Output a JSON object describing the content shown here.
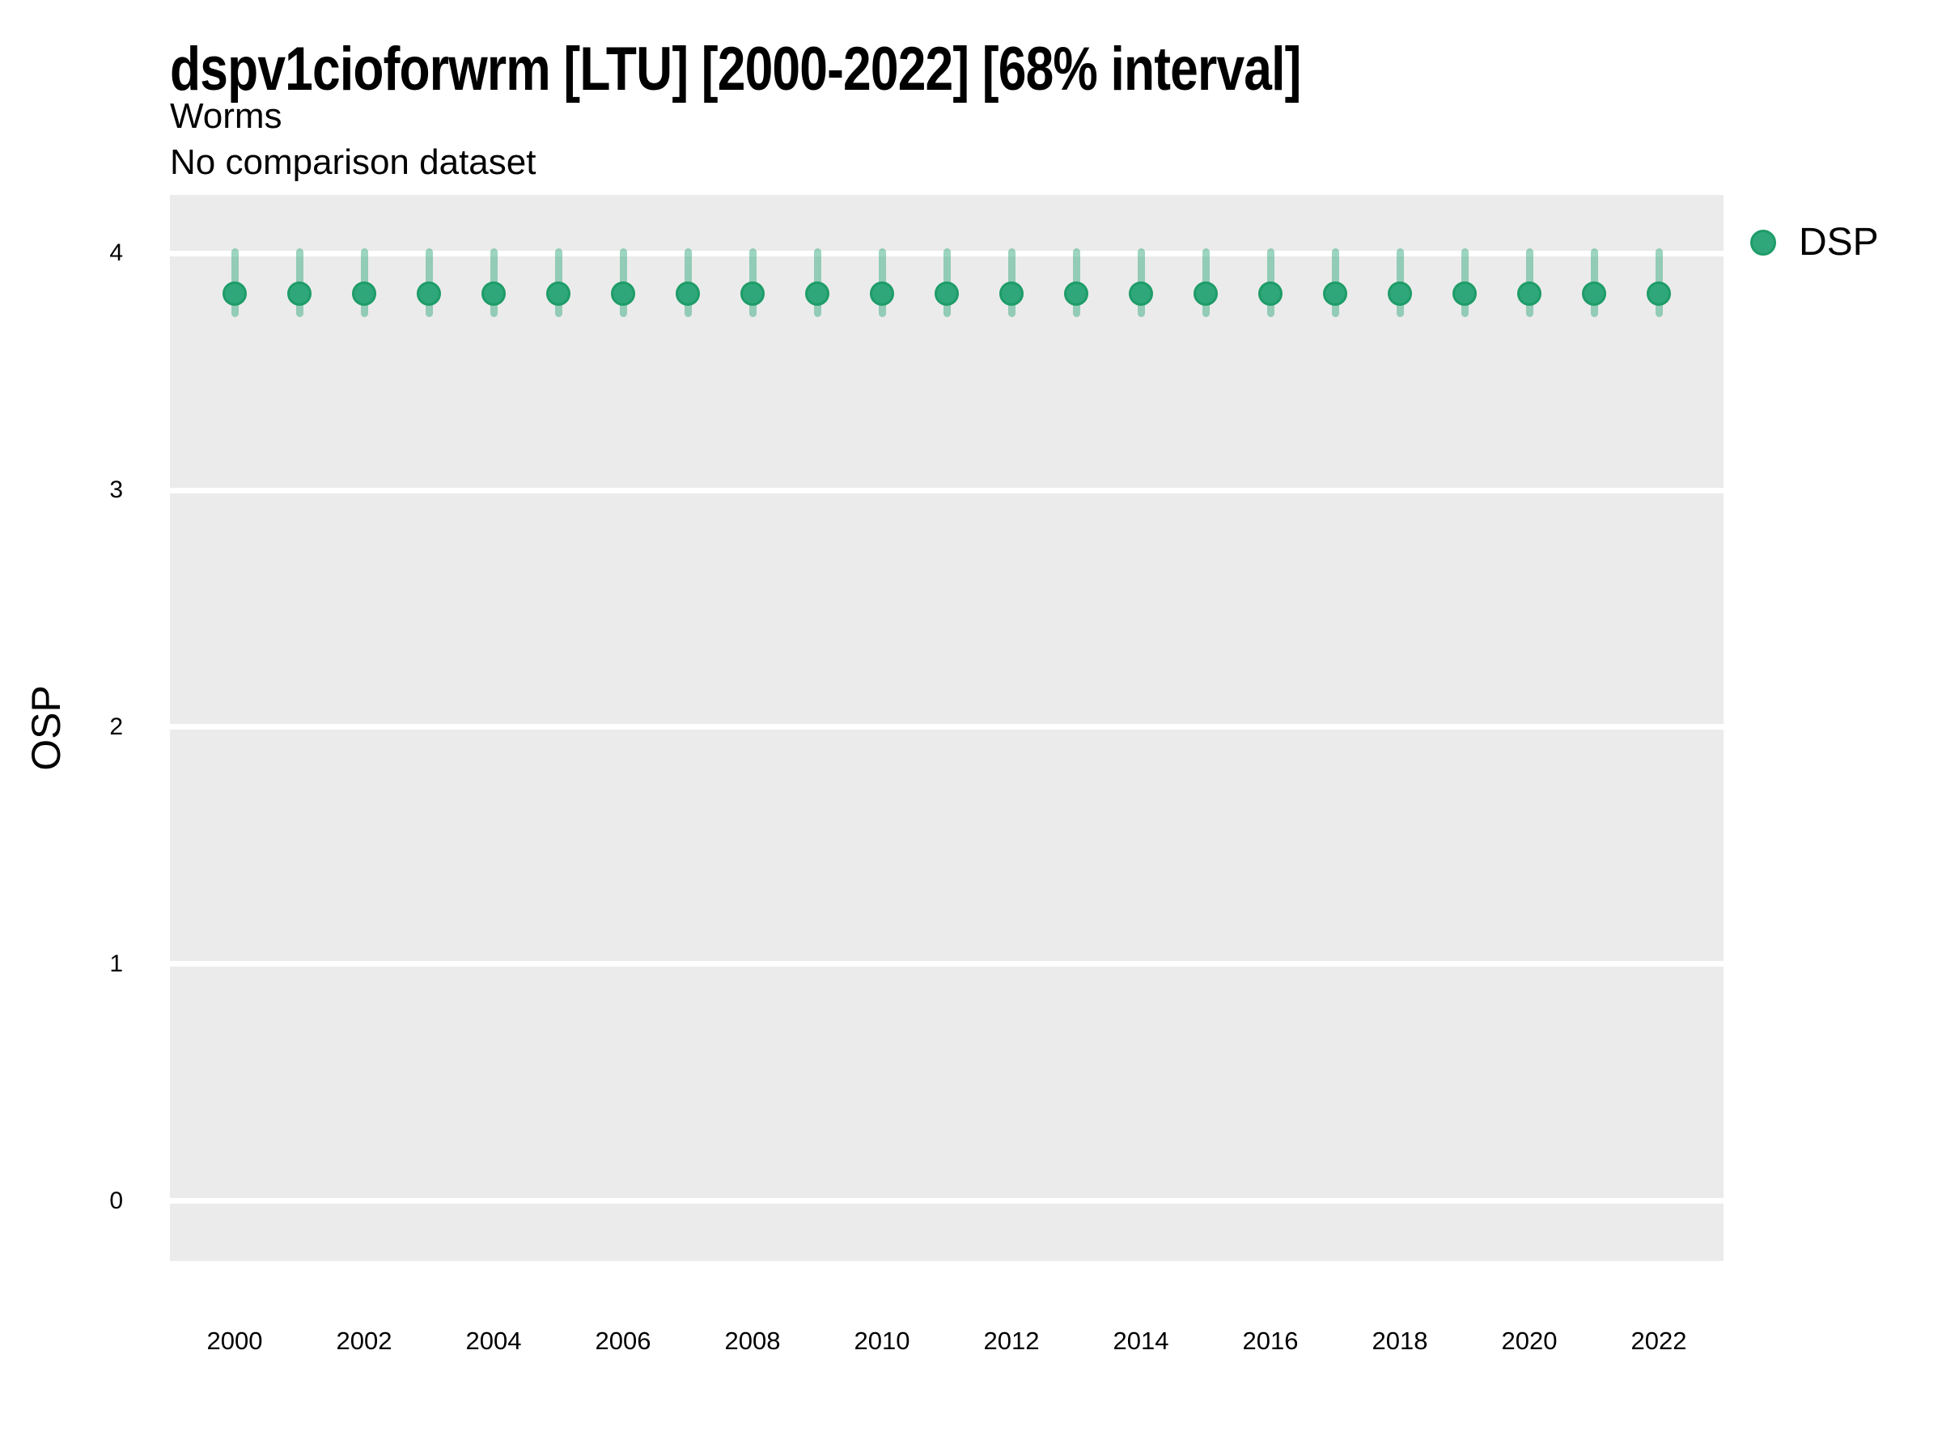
{
  "header": {
    "title": "dspv1cioforwrm [LTU] [2000-2022] [68% interval]",
    "subtitle": "Worms",
    "subtitle2": "No comparison dataset"
  },
  "axes": {
    "y_label": "OSP",
    "y_tick_labels": [
      "0",
      "1",
      "2",
      "3",
      "4"
    ],
    "x_tick_labels": [
      "2000",
      "2002",
      "2004",
      "2006",
      "2008",
      "2010",
      "2012",
      "2014",
      "2016",
      "2018",
      "2020",
      "2022"
    ]
  },
  "legend": {
    "label": "DSP",
    "position": "right"
  },
  "colors": {
    "point_fill": "#2fa77b",
    "point_border": "#1e9c68",
    "interval_bar": "rgba(49, 168, 123, 0.48)",
    "panel_background": "#ebebeb",
    "gridline": "#ffffff",
    "text": "#000000"
  },
  "chart_data": {
    "type": "scatter",
    "title": "dspv1cioforwrm [LTU] [2000-2022] [68% interval]",
    "subtitle": [
      "Worms",
      "No comparison dataset"
    ],
    "xlabel": "",
    "ylabel": "OSP",
    "x": [
      2000,
      2001,
      2002,
      2003,
      2004,
      2005,
      2006,
      2007,
      2008,
      2009,
      2010,
      2011,
      2012,
      2013,
      2014,
      2015,
      2016,
      2017,
      2018,
      2019,
      2020,
      2021,
      2022
    ],
    "series": [
      {
        "name": "DSP",
        "values": [
          3.83,
          3.83,
          3.83,
          3.83,
          3.83,
          3.83,
          3.83,
          3.83,
          3.83,
          3.83,
          3.83,
          3.83,
          3.83,
          3.83,
          3.83,
          3.83,
          3.83,
          3.83,
          3.83,
          3.83,
          3.83,
          3.83,
          3.83
        ],
        "lower_68": [
          3.73,
          3.73,
          3.73,
          3.73,
          3.73,
          3.73,
          3.73,
          3.73,
          3.73,
          3.73,
          3.73,
          3.73,
          3.73,
          3.73,
          3.73,
          3.73,
          3.73,
          3.73,
          3.73,
          3.73,
          3.73,
          3.73,
          3.73
        ],
        "upper_68": [
          4.02,
          4.02,
          4.02,
          4.02,
          4.02,
          4.02,
          4.02,
          4.02,
          4.02,
          4.02,
          4.02,
          4.02,
          4.02,
          4.02,
          4.02,
          4.02,
          4.02,
          4.02,
          4.02,
          4.02,
          4.02,
          4.02,
          4.02
        ]
      }
    ],
    "xlim": [
      1999,
      2023
    ],
    "ylim": [
      -0.253,
      4.246
    ],
    "yticks": [
      0,
      1,
      2,
      3,
      4
    ],
    "xticks": [
      2000,
      2002,
      2004,
      2006,
      2008,
      2010,
      2012,
      2014,
      2016,
      2018,
      2020,
      2022
    ],
    "grid": "horizontal white major gridlines on gray panel",
    "legend_position": "right"
  }
}
